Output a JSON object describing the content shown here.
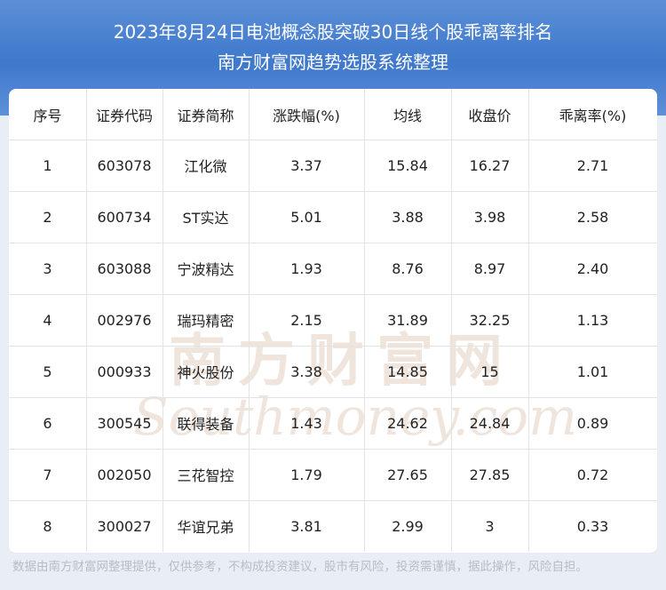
{
  "header": {
    "title": "2023年8月24日电池概念股突破30日线个股乖离率排名",
    "subtitle": "南方财富网趋势选股系统整理"
  },
  "table": {
    "columns": [
      "序号",
      "证券代码",
      "证券简称",
      "涨跌幅(%)",
      "均线",
      "收盘价",
      "乖离率(%)"
    ],
    "rows": [
      [
        "1",
        "603078",
        "江化微",
        "3.37",
        "15.84",
        "16.27",
        "2.71"
      ],
      [
        "2",
        "600734",
        "ST实达",
        "5.01",
        "3.88",
        "3.98",
        "2.58"
      ],
      [
        "3",
        "603088",
        "宁波精达",
        "1.93",
        "8.76",
        "8.97",
        "2.40"
      ],
      [
        "4",
        "002976",
        "瑞玛精密",
        "2.15",
        "31.89",
        "32.25",
        "1.13"
      ],
      [
        "5",
        "000933",
        "神火股份",
        "3.38",
        "14.85",
        "15",
        "1.01"
      ],
      [
        "6",
        "300545",
        "联得装备",
        "1.43",
        "24.62",
        "24.84",
        "0.89"
      ],
      [
        "7",
        "002050",
        "三花智控",
        "1.79",
        "27.65",
        "27.85",
        "0.72"
      ],
      [
        "8",
        "300027",
        "华谊兄弟",
        "3.81",
        "2.99",
        "3",
        "0.33"
      ]
    ]
  },
  "watermark": {
    "brand": "南方财富网",
    "site": "Southmoney.com"
  },
  "footer": {
    "disclaimer": "数据由南方财富网整理提供，仅供参考，不构成投资建议，股市有风险，投资需谨慎，据此操作，风险自担。"
  }
}
